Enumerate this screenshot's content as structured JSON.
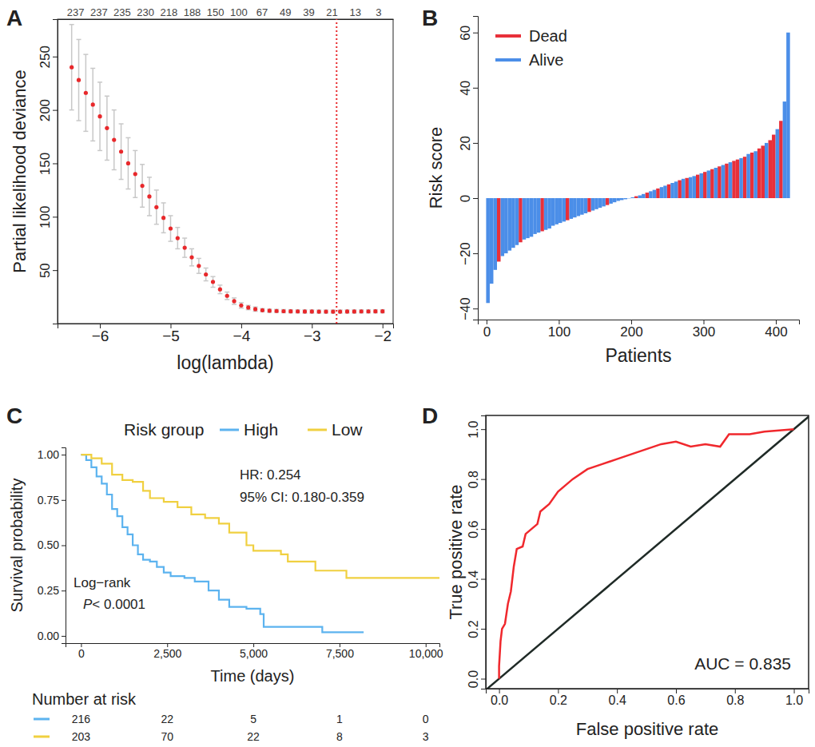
{
  "chart_data": [
    {
      "panel_label": "A",
      "type": "scatter",
      "marker": "circle",
      "color": "#e8282b",
      "x_label": "log(lambda)",
      "y_label": "Partial likelihood deviance",
      "x": [
        -6.4,
        -6.3,
        -6.2,
        -6.1,
        -6.0,
        -5.9,
        -5.8,
        -5.7,
        -5.6,
        -5.5,
        -5.4,
        -5.3,
        -5.2,
        -5.1,
        -5.0,
        -4.9,
        -4.8,
        -4.7,
        -4.6,
        -4.5,
        -4.4,
        -4.3,
        -4.2,
        -4.1,
        -4.0,
        -3.9,
        -3.8,
        -3.7,
        -3.6,
        -3.5,
        -3.4,
        -3.3,
        -3.2,
        -3.1,
        -3.0,
        -2.9,
        -2.8,
        -2.7,
        -2.6,
        -2.5,
        -2.4,
        -2.3,
        -2.2,
        -2.1,
        -2.0
      ],
      "values": [
        240,
        228,
        216,
        205,
        194,
        183,
        172,
        161,
        150,
        140,
        129,
        119,
        109,
        99,
        89,
        80,
        71,
        62,
        54,
        46,
        39,
        32,
        26,
        21,
        17,
        15,
        13.5,
        12.5,
        12,
        11.8,
        11.6,
        11.5,
        11.4,
        11.3,
        11.3,
        11.2,
        11.2,
        11.2,
        11.2,
        11.3,
        11.3,
        11.4,
        11.4,
        11.5,
        11.5
      ],
      "errors": [
        40,
        38,
        36,
        34,
        32,
        30,
        28,
        26,
        24,
        22,
        20,
        18,
        16,
        14,
        12,
        10,
        9,
        8,
        7,
        6,
        5,
        4,
        3.5,
        3,
        2.5,
        2,
        2,
        1.5,
        1.5,
        1.5,
        1.5,
        1.5,
        1.5,
        1.5,
        1.5,
        1.5,
        1.5,
        1.5,
        1.5,
        1.5,
        1.5,
        1.5,
        1.5,
        1.5,
        1.5
      ],
      "xlim": [
        -6.6,
        -1.85
      ],
      "ylim": [
        0,
        285
      ],
      "xticks": [
        -6,
        -5,
        -4,
        -3,
        -2
      ],
      "yticks": [
        50,
        100,
        150,
        200,
        250
      ],
      "top_ticks": [
        {
          "value": -6.35,
          "label": "237"
        },
        {
          "value": -6.02,
          "label": "237"
        },
        {
          "value": -5.69,
          "label": "235"
        },
        {
          "value": -5.36,
          "label": "230"
        },
        {
          "value": -5.03,
          "label": "218"
        },
        {
          "value": -4.7,
          "label": "188"
        },
        {
          "value": -4.37,
          "label": "150"
        },
        {
          "value": -4.04,
          "label": "100"
        },
        {
          "value": -3.71,
          "label": "67"
        },
        {
          "value": -3.38,
          "label": "49"
        },
        {
          "value": -3.05,
          "label": "39"
        },
        {
          "value": -2.72,
          "label": "21"
        },
        {
          "value": -2.39,
          "label": "13"
        },
        {
          "value": -2.06,
          "label": "3"
        }
      ],
      "vline": -2.65
    },
    {
      "panel_label": "B",
      "type": "bar",
      "x_label": "Patients",
      "y_label": "Risk score",
      "legend": "upper left",
      "x": [
        2,
        7,
        12,
        17,
        22,
        27,
        32,
        37,
        42,
        47,
        52,
        57,
        62,
        67,
        72,
        77,
        82,
        87,
        92,
        97,
        102,
        107,
        112,
        117,
        122,
        127,
        132,
        137,
        142,
        147,
        152,
        157,
        162,
        167,
        172,
        177,
        182,
        187,
        192,
        197,
        202,
        207,
        212,
        217,
        222,
        227,
        232,
        237,
        242,
        247,
        252,
        257,
        262,
        267,
        272,
        277,
        282,
        287,
        292,
        297,
        302,
        307,
        312,
        317,
        322,
        327,
        332,
        337,
        342,
        347,
        352,
        357,
        362,
        367,
        372,
        377,
        382,
        387,
        392,
        397,
        402,
        407,
        412,
        417
      ],
      "series": [
        {
          "name": "Dead",
          "color": "#e8303a",
          "values": [
            null,
            null,
            null,
            -23,
            null,
            null,
            null,
            null,
            null,
            -16,
            null,
            null,
            null,
            null,
            null,
            -12,
            null,
            null,
            null,
            null,
            null,
            null,
            -8,
            null,
            null,
            null,
            null,
            null,
            -5,
            null,
            null,
            null,
            null,
            -2.5,
            null,
            null,
            null,
            null,
            null,
            null,
            null,
            0.7,
            null,
            null,
            2,
            null,
            null,
            3.5,
            null,
            null,
            5,
            null,
            null,
            6.5,
            null,
            7.3,
            null,
            null,
            8.5,
            null,
            9.5,
            null,
            10.5,
            null,
            11.5,
            null,
            12.5,
            null,
            13.5,
            14,
            null,
            15,
            null,
            16.5,
            null,
            18,
            19,
            null,
            21,
            23,
            null,
            28,
            null,
            null
          ]
        },
        {
          "name": "Alive",
          "color": "#4b8ee8",
          "values": [
            -38,
            -31,
            -26,
            null,
            -21,
            -20,
            -19,
            -18,
            -17,
            null,
            -15,
            -14.5,
            -14,
            -13,
            -12.5,
            null,
            -11.5,
            -11,
            -10,
            -9.5,
            -9,
            -8.5,
            null,
            -7.5,
            -7,
            -6.5,
            -6,
            -5.5,
            null,
            -4.5,
            -4,
            -3.5,
            -3,
            null,
            -2,
            -1.5,
            -1,
            -0.7,
            -0.4,
            -0.1,
            0.3,
            null,
            1,
            1.5,
            null,
            2.5,
            3,
            null,
            4,
            4.5,
            null,
            5.5,
            6,
            null,
            7,
            null,
            7.6,
            8,
            null,
            9,
            null,
            10,
            null,
            11,
            null,
            12,
            null,
            13,
            null,
            null,
            14.5,
            null,
            16,
            null,
            17,
            null,
            null,
            20,
            null,
            null,
            25,
            null,
            35,
            60
          ]
        }
      ],
      "xlim": [
        -12,
        432
      ],
      "ylim": [
        -44,
        66
      ],
      "xticks": [
        0,
        100,
        200,
        300,
        400
      ],
      "yticks": [
        -40,
        -20,
        0,
        20,
        40,
        60
      ]
    },
    {
      "panel_label": "C",
      "type": "line",
      "line_style": "step",
      "legend": "top",
      "legend_title": "Risk group",
      "x_label": "Time (days)",
      "y_label": "Survival probability",
      "series": [
        {
          "name": "High",
          "color": "#5cb3ef",
          "x": [
            0,
            150,
            300,
            450,
            600,
            750,
            900,
            1050,
            1200,
            1350,
            1500,
            1650,
            1800,
            2000,
            2200,
            2400,
            2600,
            3000,
            3300,
            3700,
            4000,
            4300,
            4800,
            5200,
            5300,
            6900,
            7000,
            8200
          ],
          "values": [
            1,
            0.97,
            0.93,
            0.88,
            0.84,
            0.78,
            0.7,
            0.66,
            0.6,
            0.56,
            0.5,
            0.45,
            0.42,
            0.41,
            0.38,
            0.35,
            0.33,
            0.32,
            0.3,
            0.25,
            0.2,
            0.16,
            0.15,
            0.12,
            0.05,
            0.05,
            0.02,
            0.02
          ]
        },
        {
          "name": "Low",
          "color": "#f0d040",
          "x": [
            0,
            300,
            600,
            900,
            1200,
            1500,
            1800,
            2000,
            2400,
            2800,
            3200,
            3600,
            4000,
            4300,
            4800,
            5000,
            5800,
            6000,
            6800,
            7700,
            10400
          ],
          "values": [
            1,
            0.98,
            0.95,
            0.89,
            0.86,
            0.85,
            0.8,
            0.76,
            0.74,
            0.71,
            0.67,
            0.65,
            0.62,
            0.57,
            0.5,
            0.47,
            0.45,
            0.41,
            0.36,
            0.32,
            0.32
          ]
        }
      ],
      "xlim": [
        -450,
        10400
      ],
      "ylim": [
        -0.04,
        1.04
      ],
      "xticks": [
        0,
        {
          "value": 2500,
          "label": "2,500"
        },
        {
          "value": 5000,
          "label": "5,000"
        },
        {
          "value": 7500,
          "label": "7,500"
        },
        {
          "value": 10000,
          "label": "10,000"
        }
      ],
      "yticks": [
        {
          "value": 0,
          "label": "0.00"
        },
        0.25,
        {
          "value": 0.5,
          "label": "0.50"
        },
        0.75,
        {
          "value": 1,
          "label": "1.00"
        }
      ],
      "annotations": [
        "HR: 0.254",
        "95% CI: 0.180-0.359",
        "Log−rank",
        "P< 0.0001"
      ],
      "risk_table": {
        "title": "Number at risk",
        "times": [
          0,
          2500,
          5000,
          7500,
          10000
        ],
        "counts": [
          [
            216,
            22,
            5,
            1,
            0
          ],
          [
            203,
            70,
            22,
            8,
            3
          ]
        ]
      }
    },
    {
      "panel_label": "D",
      "type": "line",
      "x_label": "False positive rate",
      "y_label": "True positive rate",
      "series": [
        {
          "color": "#f0282d",
          "x": [
            0,
            0,
            0.005,
            0.01,
            0.02,
            0.03,
            0.04,
            0.05,
            0.06,
            0.08,
            0.09,
            0.11,
            0.13,
            0.14,
            0.17,
            0.2,
            0.25,
            0.3,
            0.35,
            0.4,
            0.45,
            0.5,
            0.55,
            0.6,
            0.65,
            0.7,
            0.75,
            0.78,
            0.85,
            0.9,
            1
          ],
          "values": [
            0,
            0.05,
            0.15,
            0.2,
            0.22,
            0.3,
            0.35,
            0.45,
            0.52,
            0.53,
            0.58,
            0.6,
            0.62,
            0.67,
            0.7,
            0.75,
            0.8,
            0.84,
            0.86,
            0.88,
            0.9,
            0.92,
            0.94,
            0.95,
            0.93,
            0.94,
            0.93,
            0.98,
            0.98,
            0.99,
            1
          ]
        }
      ],
      "reference_line": {
        "color": "#1f2a26",
        "x": [
          -0.045,
          1.05
        ],
        "y": [
          -0.045,
          1.05
        ]
      },
      "xlim": [
        -0.045,
        1.05
      ],
      "ylim": [
        -0.04,
        1.055
      ],
      "xticks": [
        {
          "value": 0,
          "label": "0.0"
        },
        0.2,
        0.4,
        0.6,
        0.8,
        {
          "value": 1,
          "label": "1.0"
        }
      ],
      "yticks": [
        {
          "value": 0,
          "label": "0.0"
        },
        0.2,
        0.4,
        0.6,
        0.8,
        {
          "value": 1,
          "label": "1.0"
        }
      ],
      "annotations": [
        "AUC = 0.835"
      ]
    }
  ]
}
